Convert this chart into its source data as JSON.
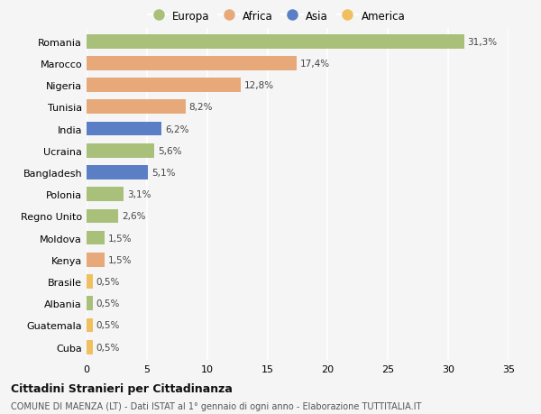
{
  "countries": [
    "Romania",
    "Marocco",
    "Nigeria",
    "Tunisia",
    "India",
    "Ucraina",
    "Bangladesh",
    "Polonia",
    "Regno Unito",
    "Moldova",
    "Kenya",
    "Brasile",
    "Albania",
    "Guatemala",
    "Cuba"
  ],
  "values": [
    31.3,
    17.4,
    12.8,
    8.2,
    6.2,
    5.6,
    5.1,
    3.1,
    2.6,
    1.5,
    1.5,
    0.5,
    0.5,
    0.5,
    0.5
  ],
  "labels": [
    "31,3%",
    "17,4%",
    "12,8%",
    "8,2%",
    "6,2%",
    "5,6%",
    "5,1%",
    "3,1%",
    "2,6%",
    "1,5%",
    "1,5%",
    "0,5%",
    "0,5%",
    "0,5%",
    "0,5%"
  ],
  "continents": [
    "Europa",
    "Africa",
    "Africa",
    "Africa",
    "Asia",
    "Europa",
    "Asia",
    "Europa",
    "Europa",
    "Europa",
    "Africa",
    "America",
    "Europa",
    "America",
    "America"
  ],
  "colors": {
    "Europa": "#a8c07a",
    "Africa": "#e8a97a",
    "Asia": "#5b7fc4",
    "America": "#f0c060"
  },
  "legend_order": [
    "Europa",
    "Africa",
    "Asia",
    "America"
  ],
  "title": "Cittadini Stranieri per Cittadinanza",
  "subtitle": "COMUNE DI MAENZA (LT) - Dati ISTAT al 1° gennaio di ogni anno - Elaborazione TUTTITALIA.IT",
  "xlim": [
    0,
    35
  ],
  "xticks": [
    0,
    5,
    10,
    15,
    20,
    25,
    30,
    35
  ],
  "background_color": "#f5f5f5",
  "grid_color": "#ffffff",
  "bar_height": 0.65
}
